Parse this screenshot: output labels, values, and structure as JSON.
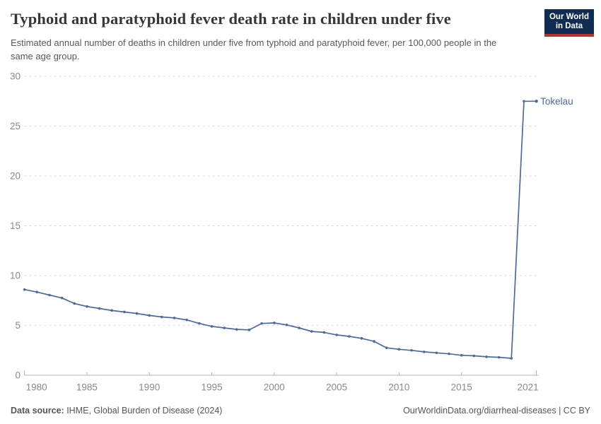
{
  "colors": {
    "line": "#4c6a9d",
    "logo_navy": "#102c52",
    "logo_red": "#bc3028",
    "grid": "#dcdcdc",
    "axis": "#b5b5b5",
    "tick_label": "#8a8a8a"
  },
  "logo": {
    "line1": "Our World",
    "line2": "in Data"
  },
  "chart_data": {
    "type": "line",
    "title": "Typhoid and paratyphoid fever death rate in children under five",
    "subtitle": "Estimated annual number of deaths in children under five from typhoid and paratyphoid fever, per 100,000 people in the same age group.",
    "xlabel": "",
    "ylabel": "",
    "xlim": [
      1980,
      2021
    ],
    "ylim": [
      0,
      30
    ],
    "x_ticks": [
      1980,
      1985,
      1990,
      1995,
      2000,
      2005,
      2010,
      2015,
      2021
    ],
    "y_ticks": [
      0,
      5,
      10,
      15,
      20,
      25,
      30
    ],
    "grid": "horizontal-dashed",
    "legend_position": "end-of-line-label",
    "series": [
      {
        "name": "Tokelau",
        "color": "#4c6a9d",
        "x": [
          1980,
          1981,
          1982,
          1983,
          1984,
          1985,
          1986,
          1987,
          1988,
          1989,
          1990,
          1991,
          1992,
          1993,
          1994,
          1995,
          1996,
          1997,
          1998,
          1999,
          2000,
          2001,
          2002,
          2003,
          2004,
          2005,
          2006,
          2007,
          2008,
          2009,
          2010,
          2011,
          2012,
          2013,
          2014,
          2015,
          2016,
          2017,
          2018,
          2019,
          2020,
          2021
        ],
        "values": [
          8.6,
          8.35,
          8.05,
          7.75,
          7.2,
          6.9,
          6.7,
          6.5,
          6.35,
          6.2,
          6.0,
          5.85,
          5.75,
          5.55,
          5.2,
          4.9,
          4.75,
          4.6,
          4.55,
          5.2,
          5.25,
          5.05,
          4.75,
          4.4,
          4.3,
          4.05,
          3.9,
          3.7,
          3.4,
          2.75,
          2.6,
          2.5,
          2.35,
          2.25,
          2.15,
          2.0,
          1.95,
          1.85,
          1.8,
          1.7,
          27.5,
          27.5
        ]
      }
    ]
  },
  "footer": {
    "datasource_label": "Data source:",
    "datasource_value": " IHME, Global Burden of Disease (2024)",
    "attribution": "OurWorldinData.org/diarrheal-diseases | CC BY"
  }
}
